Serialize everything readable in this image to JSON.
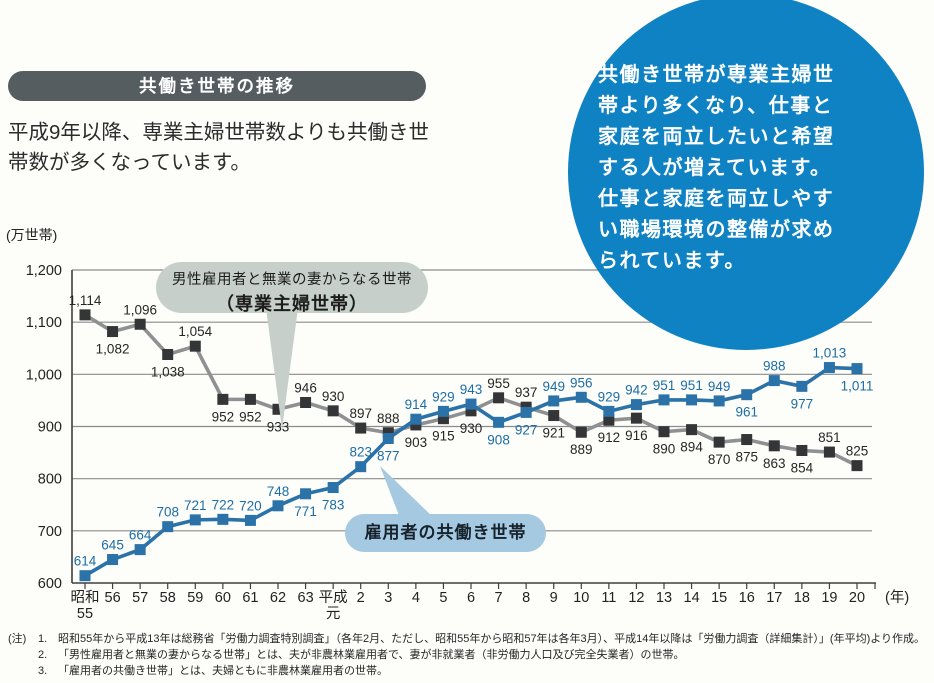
{
  "header": {
    "title": "共働き世帯の推移",
    "pill_color": "#565d61"
  },
  "intro": "平成9年以降、専業主婦世帯数よりも共働き世\n帯数が多くなっています。",
  "highlight_circle": {
    "bg_color": "#0f82c3",
    "text": "共働き世帯が専業主婦世\n帯より多くなり、仕事と\n家庭を両立したいと希望\nする人が増えています。\n仕事と家庭を両立しやす\nい職場環境の整備が求め\nられています。"
  },
  "callouts": {
    "housewife": {
      "line1": "男性雇用者と無業の妻からなる世帯",
      "line2": "（専業主婦世帯）",
      "bg_color": "#c6cfca"
    },
    "dual": {
      "label": "雇用者の共働き世帯",
      "bg_color": "#a6c9e2"
    }
  },
  "chart_data": {
    "type": "line",
    "unit_label": "(万世帯)",
    "x_axis_suffix": "(年)",
    "ylim": [
      600,
      1200
    ],
    "ytick_step": 100,
    "yticks": [
      "1,200",
      "1,100",
      "1,000",
      "900",
      "800",
      "700",
      "600"
    ],
    "grid": true,
    "categories": [
      "昭和\n55",
      "56",
      "57",
      "58",
      "59",
      "60",
      "61",
      "62",
      "63",
      "平成\n元",
      "2",
      "3",
      "4",
      "5",
      "6",
      "7",
      "8",
      "9",
      "10",
      "11",
      "12",
      "13",
      "14",
      "15",
      "16",
      "17",
      "18",
      "19",
      "20"
    ],
    "series": [
      {
        "name": "男性雇用者と無業の妻からなる世帯（専業主婦世帯）",
        "color": "#8e9092",
        "marker_color": "#333537",
        "label_color": "#262626",
        "values": [
          1114,
          1082,
          1096,
          1038,
          1054,
          952,
          952,
          933,
          946,
          930,
          897,
          888,
          903,
          915,
          930,
          955,
          937,
          921,
          889,
          912,
          916,
          890,
          894,
          870,
          875,
          863,
          854,
          851,
          825
        ],
        "label_pos": [
          "a",
          "b",
          "a",
          "b",
          "a",
          "b",
          "b",
          "b",
          "a",
          "a",
          "a",
          "a",
          "b",
          "b",
          "b",
          "a",
          "a",
          "b",
          "b",
          "b",
          "b",
          "b",
          "b",
          "b",
          "b",
          "b",
          "b",
          "a",
          "a"
        ]
      },
      {
        "name": "雇用者の共働き世帯",
        "color": "#2a72a7",
        "marker_color": "#2a72a7",
        "label_color": "#1c6da6",
        "values": [
          614,
          645,
          664,
          708,
          721,
          722,
          720,
          748,
          771,
          783,
          823,
          877,
          914,
          929,
          943,
          908,
          927,
          949,
          956,
          929,
          942,
          951,
          951,
          949,
          961,
          988,
          977,
          1013,
          1011
        ],
        "label_pos": [
          "a",
          "a",
          "a",
          "a",
          "a",
          "a",
          "a",
          "a",
          "b",
          "b",
          "a",
          "b",
          "a",
          "a",
          "a",
          "b",
          "b",
          "a",
          "a",
          "a",
          "a",
          "a",
          "a",
          "a",
          "b",
          "a",
          "b",
          "a",
          "b"
        ]
      }
    ]
  },
  "notes": {
    "marker": "(注)",
    "items": [
      {
        "num": "1.",
        "text": "昭和55年から平成13年は総務省「労働力調査特別調査」（各年2月、ただし、昭和55年から昭和57年は各年3月）、平成14年以降は「労働力調査（詳細集計）」(年平均)より作成。"
      },
      {
        "num": "2.",
        "text": "「男性雇用者と無業の妻からなる世帯」とは、夫が非農林業雇用者で、妻が非就業者（非労働力人口及び完全失業者）の世帯。"
      },
      {
        "num": "3.",
        "text": "「雇用者の共働き世帯」とは、夫婦ともに非農林業雇用者の世帯。"
      }
    ]
  }
}
